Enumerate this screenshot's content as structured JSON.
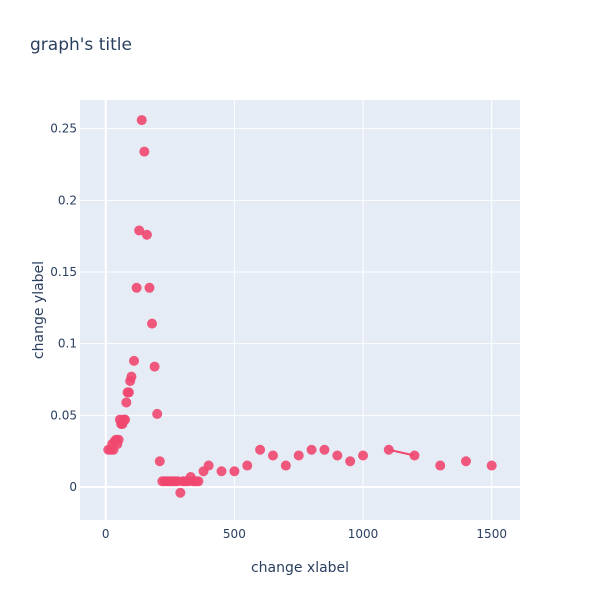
{
  "chart_data": {
    "type": "scatter",
    "title": "graph's title",
    "xlabel": "change xlabel",
    "ylabel": "change ylabel",
    "xlim": [
      -100,
      1610
    ],
    "ylim": [
      -0.023,
      0.27
    ],
    "xticks": [
      0,
      500,
      1000,
      1500
    ],
    "xtick_labels": [
      "0",
      "500",
      "1000",
      "1500"
    ],
    "yticks": [
      0,
      0.05,
      0.1,
      0.15,
      0.2,
      0.25
    ],
    "ytick_labels": [
      "0",
      "0.05",
      "0.1",
      "0.15",
      "0.2",
      "0.25"
    ],
    "grid": true,
    "colors": {
      "plot_bg": "#e5ecf6",
      "grid": "#ffffff",
      "marker": "#ef476f",
      "line": "#ef476f"
    },
    "series": [
      {
        "mode": "markers",
        "x": [
          10,
          20,
          25,
          30,
          35,
          40,
          45,
          50,
          55,
          60,
          65,
          70,
          75,
          80,
          85,
          90,
          95,
          100,
          110,
          120,
          130,
          140,
          150,
          160,
          170,
          180,
          190,
          200,
          210,
          220,
          230,
          240,
          250,
          260,
          270,
          280,
          290,
          300,
          310,
          320,
          330,
          340,
          350,
          360,
          380,
          400,
          450,
          500,
          550,
          600,
          650,
          700,
          750,
          800,
          850,
          900,
          950,
          1000,
          1300,
          1400,
          1500
        ],
        "y": [
          0.026,
          0.026,
          0.03,
          0.026,
          0.032,
          0.033,
          0.03,
          0.033,
          0.047,
          0.044,
          0.044,
          0.047,
          0.047,
          0.059,
          0.066,
          0.066,
          0.074,
          0.077,
          0.088,
          0.139,
          0.179,
          0.256,
          0.234,
          0.176,
          0.139,
          0.114,
          0.084,
          0.051,
          0.018,
          0.004,
          0.004,
          0.004,
          0.004,
          0.004,
          0.004,
          0.004,
          -0.004,
          0.004,
          0.004,
          0.004,
          0.007,
          0.004,
          0.004,
          0.004,
          0.011,
          0.015,
          0.011,
          0.011,
          0.015,
          0.026,
          0.022,
          0.015,
          0.022,
          0.026,
          0.026,
          0.022,
          0.018,
          0.022,
          0.015,
          0.018,
          0.015
        ]
      },
      {
        "mode": "lines+markers",
        "x": [
          1100,
          1200
        ],
        "y": [
          0.026,
          0.022
        ]
      }
    ]
  }
}
